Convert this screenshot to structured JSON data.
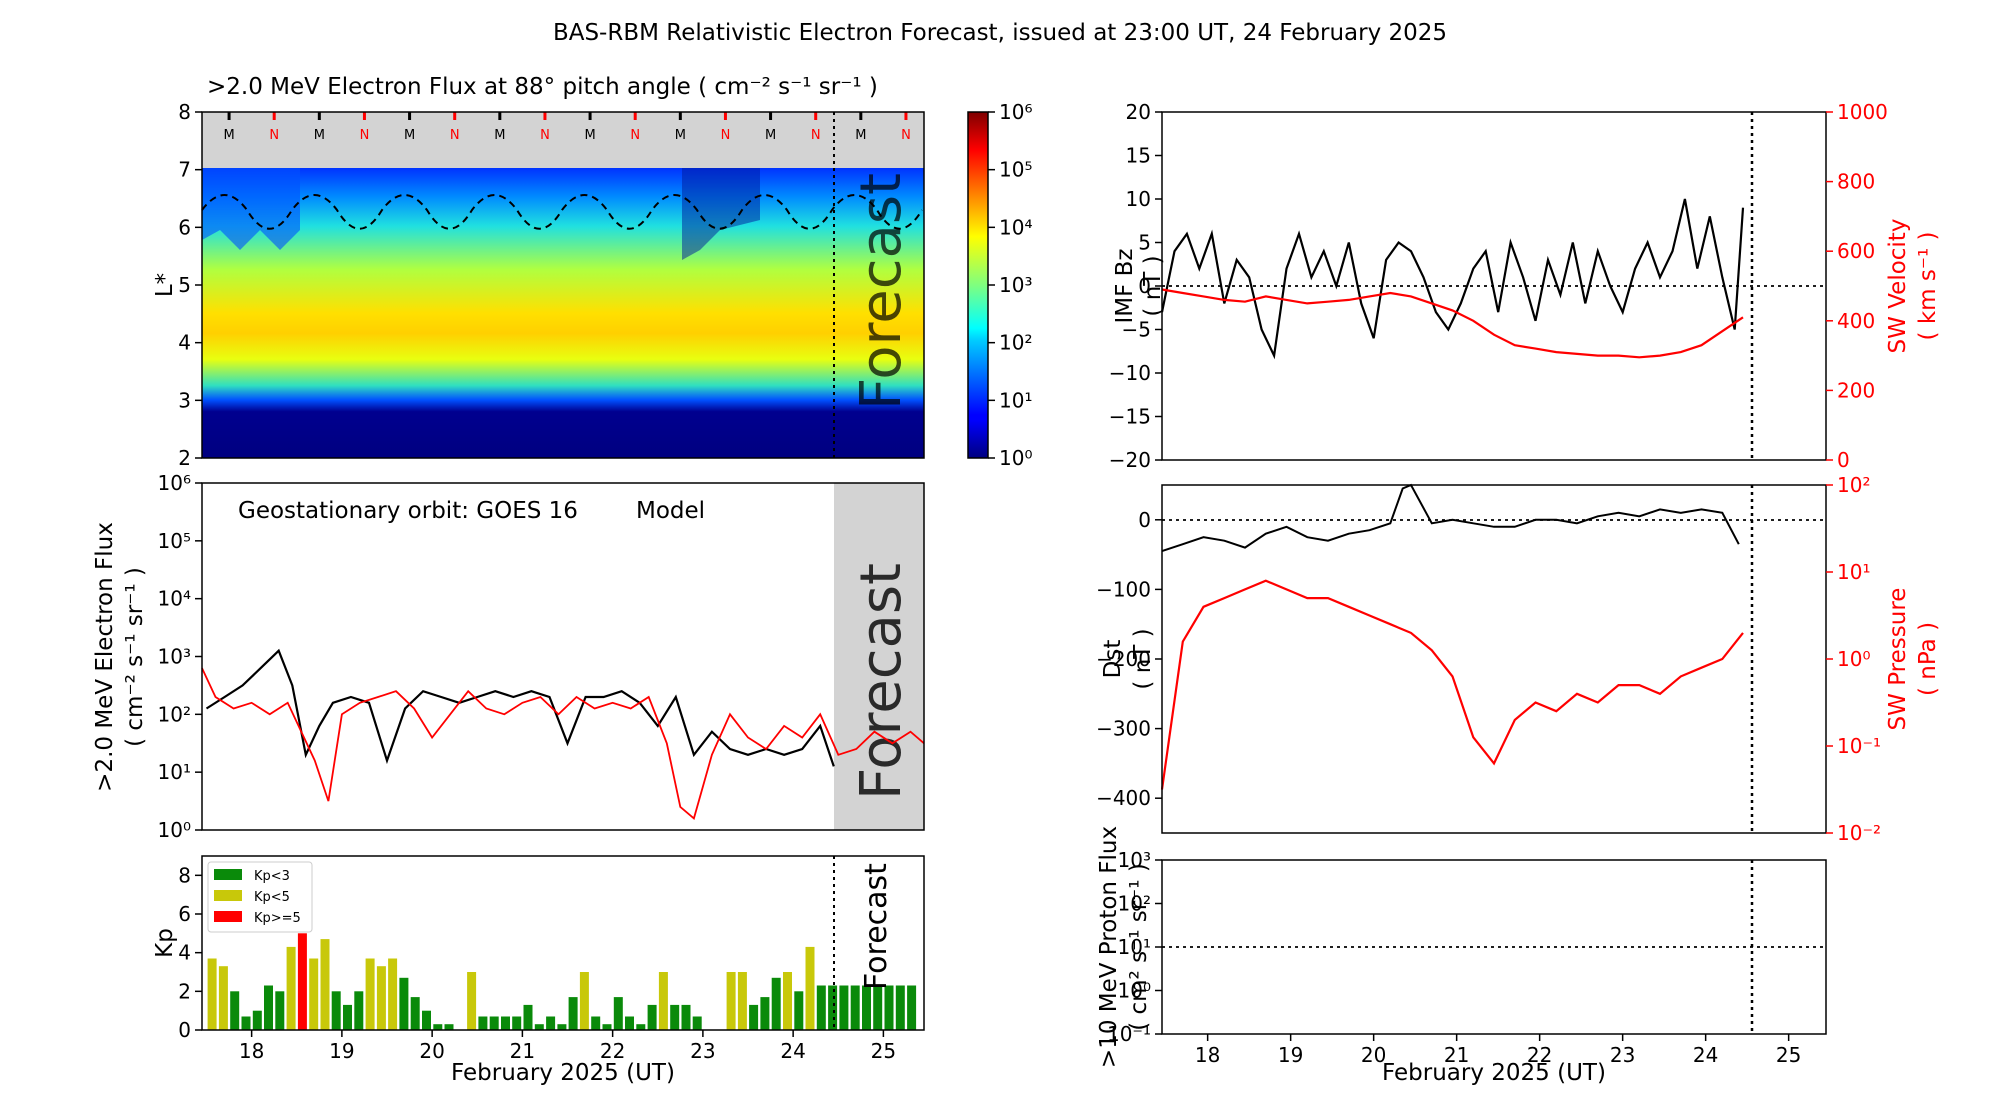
{
  "figure": {
    "title": "BAS-RBM Relativistic Electron Forecast, issued at 23:00 UT, 24 February 2025",
    "xlabel": "February 2025 (UT)",
    "forecast_label": "Forecast",
    "colors": {
      "model": "#ff0000",
      "observed": "#000000",
      "forecast_band": "#d3d3d3",
      "kp_low": "#0a8a0a",
      "kp_mid": "#c8c80a",
      "kp_high": "#ff0000"
    }
  },
  "chart_data": [
    {
      "id": "flux_map",
      "type": "heatmap",
      "title": ">2.0 MeV Electron Flux at 88° pitch angle ( cm⁻² s⁻¹ sr⁻¹ )",
      "ylabel": "L*",
      "xlim": [
        17.45,
        25.45
      ],
      "ylim": [
        2,
        8
      ],
      "yticks": [
        "2",
        "3",
        "4",
        "5",
        "6",
        "7",
        "8"
      ],
      "colorbar": {
        "scale": "log",
        "range": [
          0,
          6
        ],
        "ticks": [
          "10⁰",
          "10¹",
          "10²",
          "10³",
          "10⁴",
          "10⁵",
          "10⁶"
        ]
      },
      "peak_Lstar": 4.3,
      "forecast_start": 24.46,
      "mlt_markers": [
        "M",
        "N",
        "M",
        "N",
        "M",
        "N",
        "M",
        "N",
        "M",
        "N",
        "M",
        "N",
        "M",
        "N",
        "M",
        "N",
        "M",
        "N"
      ],
      "forecast_label": "Forecast"
    },
    {
      "id": "goes_flux",
      "type": "line",
      "ylabel": ">2.0 MeV Electron Flux",
      "ylabel2": "( cm⁻² s⁻¹ sr⁻¹ )",
      "legend_text": "Geostationary orbit:   GOES 16",
      "legend_model": "Model",
      "yscale": "log",
      "ylim": [
        0,
        6
      ],
      "yticks": [
        "10⁰",
        "10¹",
        "10²",
        "10³",
        "10⁴",
        "10⁵",
        "10⁶"
      ],
      "forecast_start": 24.46,
      "series": [
        {
          "name": "GOES 16",
          "color": "#000000",
          "x": [
            17.5,
            17.7,
            17.9,
            18.1,
            18.3,
            18.45,
            18.6,
            18.75,
            18.9,
            19.1,
            19.3,
            19.5,
            19.7,
            19.9,
            20.1,
            20.3,
            20.5,
            20.7,
            20.9,
            21.1,
            21.3,
            21.5,
            21.7,
            21.9,
            22.1,
            22.3,
            22.5,
            22.7,
            22.9,
            23.1,
            23.3,
            23.5,
            23.7,
            23.9,
            24.1,
            24.3,
            24.45
          ],
          "y": [
            2.1,
            2.3,
            2.5,
            2.8,
            3.1,
            2.5,
            1.3,
            1.8,
            2.2,
            2.3,
            2.2,
            1.2,
            2.1,
            2.4,
            2.3,
            2.2,
            2.3,
            2.4,
            2.3,
            2.4,
            2.3,
            1.5,
            2.3,
            2.3,
            2.4,
            2.2,
            1.8,
            2.3,
            1.3,
            1.7,
            1.4,
            1.3,
            1.4,
            1.3,
            1.4,
            1.8,
            1.1
          ]
        },
        {
          "name": "Model",
          "color": "#ff0000",
          "x": [
            17.45,
            17.6,
            17.8,
            18.0,
            18.2,
            18.4,
            18.55,
            18.7,
            18.85,
            19.0,
            19.2,
            19.4,
            19.6,
            19.8,
            20.0,
            20.2,
            20.4,
            20.6,
            20.8,
            21.0,
            21.2,
            21.4,
            21.6,
            21.8,
            22.0,
            22.2,
            22.4,
            22.6,
            22.75,
            22.9,
            23.1,
            23.3,
            23.5,
            23.7,
            23.9,
            24.1,
            24.3,
            24.5,
            24.7,
            24.9,
            25.1,
            25.3,
            25.45
          ],
          "y": [
            2.8,
            2.3,
            2.1,
            2.2,
            2.0,
            2.2,
            1.7,
            1.2,
            0.5,
            2.0,
            2.2,
            2.3,
            2.4,
            2.1,
            1.6,
            2.0,
            2.4,
            2.1,
            2.0,
            2.2,
            2.3,
            2.0,
            2.3,
            2.1,
            2.2,
            2.1,
            2.3,
            1.5,
            0.4,
            0.2,
            1.3,
            2.0,
            1.6,
            1.4,
            1.8,
            1.6,
            2.0,
            1.3,
            1.4,
            1.7,
            1.5,
            1.7,
            1.5
          ]
        }
      ],
      "forecast_label": "Forecast"
    },
    {
      "id": "kp",
      "type": "bar",
      "ylabel": "Kp",
      "ylim": [
        0,
        9
      ],
      "yticks": [
        "0",
        "2",
        "4",
        "6",
        "8"
      ],
      "legend": [
        "Kp<3",
        "Kp<5",
        "Kp>=5"
      ],
      "bar_width_days": 0.1,
      "forecast_start": 24.46,
      "x": [
        17.5625,
        17.6875,
        17.8125,
        17.9375,
        18.0625,
        18.1875,
        18.3125,
        18.4375,
        18.5625,
        18.6875,
        18.8125,
        18.9375,
        19.0625,
        19.1875,
        19.3125,
        19.4375,
        19.5625,
        19.6875,
        19.8125,
        19.9375,
        20.0625,
        20.1875,
        20.3125,
        20.4375,
        20.5625,
        20.6875,
        20.8125,
        20.9375,
        21.0625,
        21.1875,
        21.3125,
        21.4375,
        21.5625,
        21.6875,
        21.8125,
        21.9375,
        22.0625,
        22.1875,
        22.3125,
        22.4375,
        22.5625,
        22.6875,
        22.8125,
        22.9375,
        23.0625,
        23.1875,
        23.3125,
        23.4375,
        23.5625,
        23.6875,
        23.8125,
        23.9375,
        24.0625,
        24.1875,
        24.3125,
        24.4375,
        24.5625,
        24.6875,
        24.8125,
        24.9375,
        25.0625,
        25.1875,
        25.3125
      ],
      "values": [
        3.7,
        3.3,
        2.0,
        0.7,
        1.0,
        2.3,
        2.0,
        4.3,
        5.0,
        3.7,
        4.7,
        2.0,
        1.3,
        2.0,
        3.7,
        3.3,
        3.7,
        2.7,
        1.7,
        1.0,
        0.3,
        0.3,
        0,
        3.0,
        0.7,
        0.7,
        0.7,
        0.7,
        1.3,
        0.3,
        0.7,
        0.3,
        1.7,
        3.0,
        0.7,
        0.3,
        1.7,
        0.7,
        0.3,
        1.3,
        3.0,
        1.3,
        1.3,
        0.7,
        0,
        0,
        3.0,
        3.0,
        1.3,
        1.7,
        2.7,
        3.0,
        2.0,
        4.3,
        2.3,
        2.3,
        2.3,
        2.3,
        2.3,
        2.3,
        2.3,
        2.3,
        2.3
      ],
      "forecast_label": "Forecast"
    },
    {
      "id": "imf_sw",
      "type": "line",
      "ylabel": "IMF Bz",
      "ylabel_unit": "( nT )",
      "ylim": [
        -20,
        20
      ],
      "yticks": [
        "−20",
        "−15",
        "−10",
        "−5",
        "0",
        "5",
        "10",
        "15",
        "20"
      ],
      "y2label": "SW Velocity",
      "y2label_unit": "( km s⁻¹ )",
      "y2lim": [
        0,
        1000
      ],
      "y2ticks": [
        "0",
        "200",
        "400",
        "600",
        "800",
        "1000"
      ],
      "forecast_start": 24.46,
      "series": [
        {
          "name": "IMF Bz",
          "axis": "left",
          "color": "#000000",
          "x": [
            17.45,
            17.6,
            17.75,
            17.9,
            18.05,
            18.2,
            18.35,
            18.5,
            18.65,
            18.8,
            18.95,
            19.1,
            19.25,
            19.4,
            19.55,
            19.7,
            19.85,
            20.0,
            20.15,
            20.3,
            20.45,
            20.6,
            20.75,
            20.9,
            21.05,
            21.2,
            21.35,
            21.5,
            21.65,
            21.8,
            21.95,
            22.1,
            22.25,
            22.4,
            22.55,
            22.7,
            22.85,
            23.0,
            23.15,
            23.3,
            23.45,
            23.6,
            23.75,
            23.9,
            24.05,
            24.2,
            24.35,
            24.45
          ],
          "y": [
            -3,
            4,
            6,
            2,
            6,
            -2,
            3,
            1,
            -5,
            -8,
            2,
            6,
            1,
            4,
            0,
            5,
            -2,
            -6,
            3,
            5,
            4,
            1,
            -3,
            -5,
            -2,
            2,
            4,
            -3,
            5,
            1,
            -4,
            3,
            -1,
            5,
            -2,
            4,
            0,
            -3,
            2,
            5,
            1,
            4,
            10,
            2,
            8,
            1,
            -5,
            9
          ]
        },
        {
          "name": "SW Velocity",
          "axis": "right",
          "color": "#ff0000",
          "x": [
            17.45,
            17.7,
            17.95,
            18.2,
            18.45,
            18.7,
            18.95,
            19.2,
            19.45,
            19.7,
            19.95,
            20.2,
            20.45,
            20.7,
            20.95,
            21.2,
            21.45,
            21.7,
            21.95,
            22.2,
            22.45,
            22.7,
            22.95,
            23.2,
            23.45,
            23.7,
            23.95,
            24.2,
            24.45
          ],
          "y": [
            490,
            480,
            470,
            460,
            455,
            470,
            460,
            450,
            455,
            460,
            470,
            480,
            470,
            450,
            430,
            400,
            360,
            330,
            320,
            310,
            305,
            300,
            300,
            295,
            300,
            310,
            330,
            370,
            410
          ]
        }
      ],
      "forecast_label": "Forecast"
    },
    {
      "id": "dst_sw",
      "type": "line",
      "ylabel": "Dst",
      "ylabel_unit": "( nT )",
      "ylim": [
        -450,
        50
      ],
      "yticks": [
        "−400",
        "−300",
        "−200",
        "−100",
        "0"
      ],
      "y2label": "SW Pressure",
      "y2label_unit": "( nPa )",
      "y2scale": "log",
      "y2lim": [
        -2,
        2
      ],
      "y2ticks": [
        "10⁻²",
        "10⁻¹",
        "10⁰",
        "10¹",
        "10²"
      ],
      "forecast_start": 24.46,
      "series": [
        {
          "name": "Dst",
          "axis": "left",
          "color": "#000000",
          "x": [
            17.45,
            17.7,
            17.95,
            18.2,
            18.45,
            18.7,
            18.95,
            19.2,
            19.45,
            19.7,
            19.95,
            20.2,
            20.35,
            20.45,
            20.7,
            20.95,
            21.2,
            21.45,
            21.7,
            21.95,
            22.2,
            22.45,
            22.7,
            22.95,
            23.2,
            23.45,
            23.7,
            23.95,
            24.2,
            24.4
          ],
          "y": [
            -45,
            -35,
            -25,
            -30,
            -40,
            -20,
            -10,
            -25,
            -30,
            -20,
            -15,
            -5,
            45,
            50,
            -5,
            0,
            -5,
            -10,
            -10,
            0,
            0,
            -5,
            5,
            10,
            5,
            15,
            10,
            15,
            10,
            -35
          ]
        },
        {
          "name": "SW Pressure",
          "axis": "right",
          "color": "#ff0000",
          "x": [
            17.45,
            17.7,
            17.95,
            18.2,
            18.45,
            18.7,
            18.95,
            19.2,
            19.45,
            19.7,
            19.95,
            20.2,
            20.45,
            20.7,
            20.95,
            21.2,
            21.45,
            21.7,
            21.95,
            22.2,
            22.45,
            22.7,
            22.95,
            23.2,
            23.45,
            23.7,
            23.95,
            24.2,
            24.45
          ],
          "y": [
            -1.5,
            0.2,
            0.6,
            0.7,
            0.8,
            0.9,
            0.8,
            0.7,
            0.7,
            0.6,
            0.5,
            0.4,
            0.3,
            0.1,
            -0.2,
            -0.9,
            -1.2,
            -0.7,
            -0.5,
            -0.6,
            -0.4,
            -0.5,
            -0.3,
            -0.3,
            -0.4,
            -0.2,
            -0.1,
            0.0,
            0.3
          ]
        }
      ],
      "forecast_label": "Forecast"
    },
    {
      "id": "proton",
      "type": "line",
      "ylabel": ">10 MeV Proton Flux",
      "ylabel2": "( cm² s⁻¹ sr⁻¹ )",
      "yscale": "log",
      "ylim": [
        -1,
        3
      ],
      "yticks": [
        "10⁻¹",
        "10⁰",
        "10¹",
        "10²",
        "10³"
      ],
      "threshold": 1,
      "forecast_start": 24.46,
      "series": [],
      "forecast_label": "Forecast"
    }
  ],
  "xticks": [
    "18",
    "19",
    "20",
    "21",
    "22",
    "23",
    "24",
    "25"
  ]
}
